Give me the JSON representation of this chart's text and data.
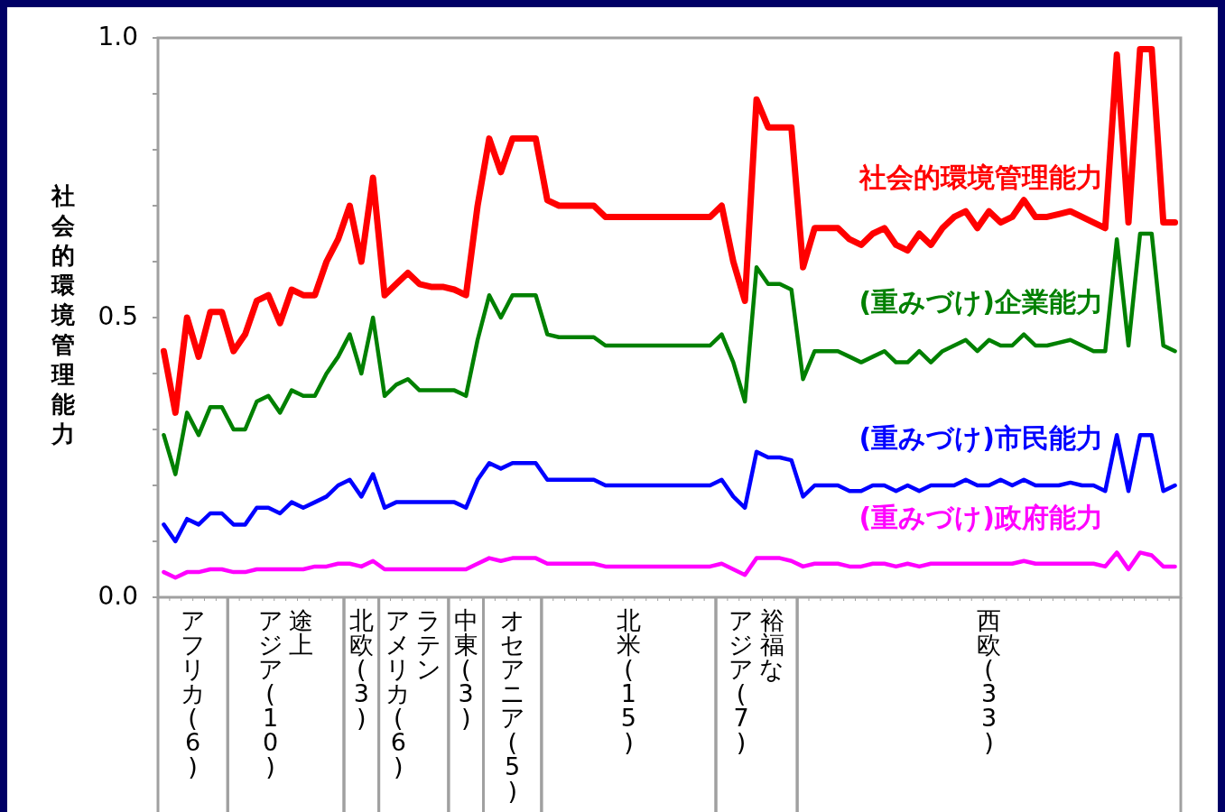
{
  "chart_data": {
    "type": "line",
    "ylabel": "社会的環境管理能力",
    "categories": [
      null,
      null,
      null,
      null,
      null,
      null,
      null,
      null,
      null,
      null,
      null,
      null,
      null,
      null,
      null,
      null,
      null,
      null,
      null,
      null,
      null,
      null,
      null,
      null,
      null,
      null,
      null,
      null,
      null,
      null,
      null,
      null,
      null,
      null,
      null,
      null,
      null,
      null,
      null,
      null,
      null,
      null,
      null,
      null,
      null,
      null,
      null,
      null,
      null,
      null,
      null,
      null,
      null,
      null,
      null,
      null,
      null,
      null,
      null,
      null,
      null,
      null,
      null,
      null,
      null,
      null,
      null,
      null,
      null,
      null,
      null,
      null,
      null,
      null,
      null,
      null,
      null,
      null,
      null,
      null,
      null,
      null,
      null,
      null,
      null,
      null,
      null,
      null
    ],
    "ylim": [
      0,
      1
    ],
    "yticks": [
      {
        "value": 0,
        "label": "0.0"
      },
      {
        "value": 0.1,
        "label": null
      },
      {
        "value": 0.2,
        "label": null
      },
      {
        "value": 0.3,
        "label": null
      },
      {
        "value": 0.4,
        "label": null
      },
      {
        "value": 0.5,
        "label": "0.5"
      },
      {
        "value": 0.6,
        "label": null
      },
      {
        "value": 0.7,
        "label": null
      },
      {
        "value": 0.8,
        "label": null
      },
      {
        "value": 0.9,
        "label": null
      },
      {
        "value": 1,
        "label": "1.0"
      }
    ],
    "tick_labels": "y",
    "legend": false,
    "grid": false,
    "marker": "none",
    "line_style": "solid",
    "annotations": [
      "アフリカ(6)",
      "途上アジア(10)",
      "北欧(3)",
      "ラテンアメリカ(6)",
      "中東(3)",
      "オセアニア(5)",
      "北米(15)",
      "裕福なアジア(7)",
      "西欧(33)"
    ],
    "series": [
      {
        "name": "社会的環境管理能力",
        "color": "#ff0000",
        "values": [
          0.44,
          0.33,
          0.5,
          0.43,
          0.51,
          0.51,
          0.44,
          0.47,
          0.53,
          0.54,
          0.49,
          0.55,
          0.54,
          0.54,
          0.6,
          0.64,
          0.7,
          0.6,
          0.75,
          0.54,
          0.56,
          0.58,
          0.56,
          0.555,
          0.555,
          0.55,
          0.54,
          0.7,
          0.82,
          0.76,
          0.82,
          0.82,
          0.82,
          0.71,
          0.7,
          0.7,
          0.7,
          0.7,
          0.68,
          0.68,
          0.68,
          0.68,
          0.68,
          0.68,
          0.68,
          0.68,
          0.68,
          0.68,
          0.7,
          0.6,
          0.53,
          0.89,
          0.84,
          0.84,
          0.84,
          0.59,
          0.66,
          0.66,
          0.66,
          0.64,
          0.63,
          0.65,
          0.66,
          0.63,
          0.62,
          0.65,
          0.63,
          0.66,
          0.68,
          0.69,
          0.66,
          0.69,
          0.67,
          0.68,
          0.71,
          0.68,
          0.68,
          0.685,
          0.69,
          0.68,
          0.67,
          0.66,
          0.97,
          0.67,
          0.98,
          0.98,
          0.67,
          0.67
        ]
      },
      {
        "name": "(重みづけ)企業能力",
        "color": "#008000",
        "values": [
          0.29,
          0.22,
          0.33,
          0.29,
          0.34,
          0.34,
          0.3,
          0.3,
          0.35,
          0.36,
          0.33,
          0.37,
          0.36,
          0.36,
          0.4,
          0.43,
          0.47,
          0.4,
          0.5,
          0.36,
          0.38,
          0.39,
          0.37,
          0.37,
          0.37,
          0.37,
          0.36,
          0.46,
          0.54,
          0.5,
          0.54,
          0.54,
          0.54,
          0.47,
          0.465,
          0.465,
          0.465,
          0.465,
          0.45,
          0.45,
          0.45,
          0.45,
          0.45,
          0.45,
          0.45,
          0.45,
          0.45,
          0.45,
          0.47,
          0.42,
          0.35,
          0.59,
          0.56,
          0.56,
          0.55,
          0.39,
          0.44,
          0.44,
          0.44,
          0.43,
          0.42,
          0.43,
          0.44,
          0.42,
          0.42,
          0.44,
          0.42,
          0.44,
          0.45,
          0.46,
          0.44,
          0.46,
          0.45,
          0.45,
          0.47,
          0.45,
          0.45,
          0.455,
          0.46,
          0.45,
          0.44,
          0.44,
          0.64,
          0.45,
          0.65,
          0.65,
          0.45,
          0.44
        ]
      },
      {
        "name": "(重みづけ)市民能力",
        "color": "#0000ff",
        "values": [
          0.13,
          0.1,
          0.14,
          0.13,
          0.15,
          0.15,
          0.13,
          0.13,
          0.16,
          0.16,
          0.15,
          0.17,
          0.16,
          0.17,
          0.18,
          0.2,
          0.21,
          0.18,
          0.22,
          0.16,
          0.17,
          0.17,
          0.17,
          0.17,
          0.17,
          0.17,
          0.16,
          0.21,
          0.24,
          0.23,
          0.24,
          0.24,
          0.24,
          0.21,
          0.21,
          0.21,
          0.21,
          0.21,
          0.2,
          0.2,
          0.2,
          0.2,
          0.2,
          0.2,
          0.2,
          0.2,
          0.2,
          0.2,
          0.21,
          0.18,
          0.16,
          0.26,
          0.25,
          0.25,
          0.245,
          0.18,
          0.2,
          0.2,
          0.2,
          0.19,
          0.19,
          0.2,
          0.2,
          0.19,
          0.2,
          0.19,
          0.2,
          0.2,
          0.2,
          0.21,
          0.2,
          0.2,
          0.21,
          0.2,
          0.21,
          0.2,
          0.2,
          0.2,
          0.205,
          0.2,
          0.2,
          0.19,
          0.29,
          0.19,
          0.29,
          0.29,
          0.19,
          0.2
        ]
      },
      {
        "name": "(重みづけ)政府能力",
        "color": "#ff00ff",
        "values": [
          0.045,
          0.035,
          0.045,
          0.045,
          0.05,
          0.05,
          0.045,
          0.045,
          0.05,
          0.05,
          0.05,
          0.05,
          0.05,
          0.055,
          0.055,
          0.06,
          0.06,
          0.055,
          0.065,
          0.05,
          0.05,
          0.05,
          0.05,
          0.05,
          0.05,
          0.05,
          0.05,
          0.06,
          0.07,
          0.065,
          0.07,
          0.07,
          0.07,
          0.06,
          0.06,
          0.06,
          0.06,
          0.06,
          0.055,
          0.055,
          0.055,
          0.055,
          0.055,
          0.055,
          0.055,
          0.055,
          0.055,
          0.055,
          0.06,
          0.05,
          0.04,
          0.07,
          0.07,
          0.07,
          0.065,
          0.055,
          0.06,
          0.06,
          0.06,
          0.055,
          0.055,
          0.06,
          0.06,
          0.055,
          0.06,
          0.055,
          0.06,
          0.06,
          0.06,
          0.06,
          0.06,
          0.06,
          0.06,
          0.06,
          0.065,
          0.06,
          0.06,
          0.06,
          0.06,
          0.06,
          0.06,
          0.055,
          0.08,
          0.05,
          0.08,
          0.075,
          0.055,
          0.055
        ]
      }
    ]
  }
}
